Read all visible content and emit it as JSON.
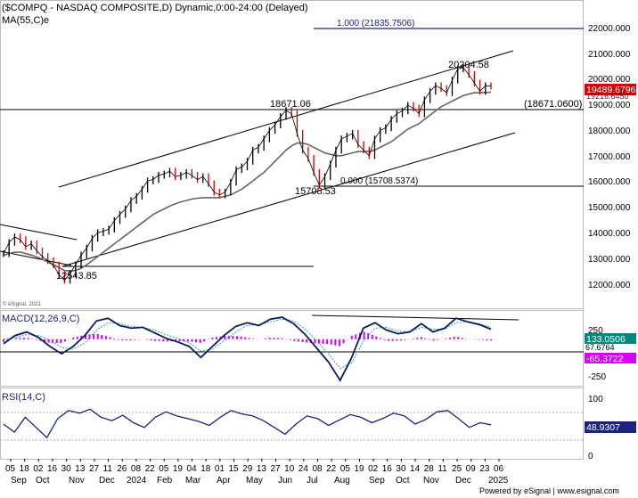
{
  "chart_data": [
    {
      "type": "line",
      "title": "($COMPQ - NASDAQ COMPOSITE,D) Dynamic,0:00-24:00 (Delayed)",
      "indicator_label": "MA(55,C)e",
      "watermark": "© eSignal, 2021",
      "y_ticks": [
        "22000.000",
        "21000.000",
        "20000.000",
        "19000.000",
        "18000.000",
        "17000.000",
        "16000.000",
        "15000.000",
        "14000.000",
        "13000.000",
        "12000.000"
      ],
      "ylim": [
        11550,
        22500
      ],
      "series": [
        {
          "values": [
            13500,
            13900,
            14100,
            14000,
            13750,
            13850,
            13600,
            13400,
            13250,
            13100,
            12750,
            12550,
            12800,
            13100,
            13450,
            13700,
            14050,
            14250,
            14300,
            14380,
            14680,
            14900,
            15100,
            15400,
            15550,
            15800,
            16100,
            16150,
            16300,
            16350,
            16450,
            16250,
            16300,
            16400,
            16300,
            16150,
            16250,
            16000,
            15700,
            15600,
            15700,
            16050,
            16500,
            16600,
            16800,
            17200,
            17300,
            17600,
            17900,
            18100,
            18400,
            18620,
            18500,
            17800,
            17200,
            16900,
            16400,
            15950,
            16250,
            16700,
            17200,
            17600,
            17700,
            17800,
            17400,
            17200,
            17000,
            17600,
            17900,
            18000,
            18300,
            18500,
            18600,
            18800,
            18700,
            18500,
            19000,
            19300,
            19500,
            19400,
            19250,
            19700,
            20100,
            20150,
            19900,
            19600,
            19300,
            19500,
            19489.6796
          ]
        },
        {
          "values": [
            13450,
            13500,
            13550,
            13560,
            13500,
            13450,
            13380,
            13300,
            13200,
            13100,
            13000,
            12900,
            12880,
            12900,
            12980,
            13100,
            13250,
            13400,
            13550,
            13700,
            13850,
            14000,
            14150,
            14300,
            14450,
            14600,
            14750,
            14900,
            15000,
            15100,
            15200,
            15280,
            15350,
            15400,
            15450,
            15480,
            15500,
            15500,
            15500,
            15500,
            15550,
            15600,
            15700,
            15800,
            15950,
            16100,
            16250,
            16400,
            16600,
            16800,
            17000,
            17200,
            17350,
            17450,
            17450,
            17400,
            17300,
            17200,
            17100,
            17050,
            17000,
            17000,
            17050,
            17100,
            17150,
            17150,
            17150,
            17200,
            17300,
            17400,
            17500,
            17650,
            17800,
            17950,
            18050,
            18150,
            18300,
            18450,
            18600,
            18750,
            18850,
            18950,
            19050,
            19150,
            19200,
            19250,
            19250,
            19260,
            19265
          ]
        }
      ],
      "x_ticks": [
        "05",
        "18",
        "02",
        "16",
        "30",
        "13",
        "27",
        "11",
        "26",
        "08",
        "22",
        "05",
        "19",
        "04",
        "18",
        "01",
        "15",
        "29",
        "13",
        "27",
        "10",
        "24",
        "08",
        "22",
        "05",
        "19",
        "02",
        "16",
        "30",
        "14",
        "28",
        "11",
        "25",
        "09",
        "23",
        "06"
      ],
      "x_labels_row2": [
        "Sep",
        "Oct",
        "Nov",
        "Dec",
        "2024",
        "Feb",
        "Mar",
        "Apr",
        "May",
        "Jun",
        "Jul",
        "Aug",
        "Sep",
        "Oct",
        "Nov",
        "Dec",
        "2025"
      ],
      "annotations": {
        "fib_top_label": "1.000 (21835.7506)",
        "fib_bottom_label": "0.000 (15708.5374)",
        "resistance_label": "(18671.0600)",
        "high_label": "20204.58",
        "jul_high_label": "18671.06",
        "aug_low_label": "15708.53",
        "oct_low_label": "12543.85",
        "last_price": "19489.6796",
        "ma_value_hidden": "19216.6450"
      }
    },
    {
      "type": "line",
      "title": "MACD(12,26,9,C)",
      "y_ticks": [
        "250",
        "-250"
      ],
      "values_labels": {
        "macd": "133.0506",
        "signal": "67.6764",
        "hist": "-65.3722"
      },
      "series": [
        {
          "values": [
            -50,
            40,
            80,
            20,
            -80,
            -160,
            -80,
            40,
            200,
            230,
            150,
            120,
            130,
            70,
            10,
            -30,
            -80,
            -200,
            -80,
            40,
            140,
            180,
            150,
            220,
            240,
            170,
            50,
            -100,
            -250,
            -450,
            -200,
            120,
            180,
            100,
            60,
            80,
            170,
            80,
            120,
            230,
            190,
            160,
            110
          ]
        },
        {
          "values": [
            0,
            20,
            50,
            40,
            -10,
            -90,
            -110,
            -40,
            100,
            180,
            170,
            140,
            130,
            100,
            50,
            10,
            -40,
            -130,
            -110,
            -20,
            80,
            150,
            160,
            190,
            220,
            200,
            110,
            -20,
            -160,
            -320,
            -260,
            -20,
            120,
            130,
            90,
            80,
            130,
            110,
            110,
            180,
            190,
            170,
            133
          ]
        }
      ]
    },
    {
      "type": "line",
      "title": "RSI(14,C)",
      "y_ticks": [
        "100",
        "50",
        "0"
      ],
      "value_label": "48.9307",
      "series": [
        {
          "values": [
            50,
            38,
            60,
            45,
            30,
            58,
            70,
            66,
            72,
            60,
            55,
            63,
            52,
            45,
            60,
            68,
            62,
            58,
            54,
            48,
            60,
            70,
            65,
            62,
            55,
            45,
            35,
            50,
            62,
            58,
            48,
            56,
            64,
            60,
            52,
            58,
            66,
            62,
            50,
            57,
            68,
            70,
            58,
            45,
            52,
            48.93
          ]
        }
      ]
    }
  ],
  "footer": {
    "credit": "Powered by eSignal | www.esignal.com"
  }
}
